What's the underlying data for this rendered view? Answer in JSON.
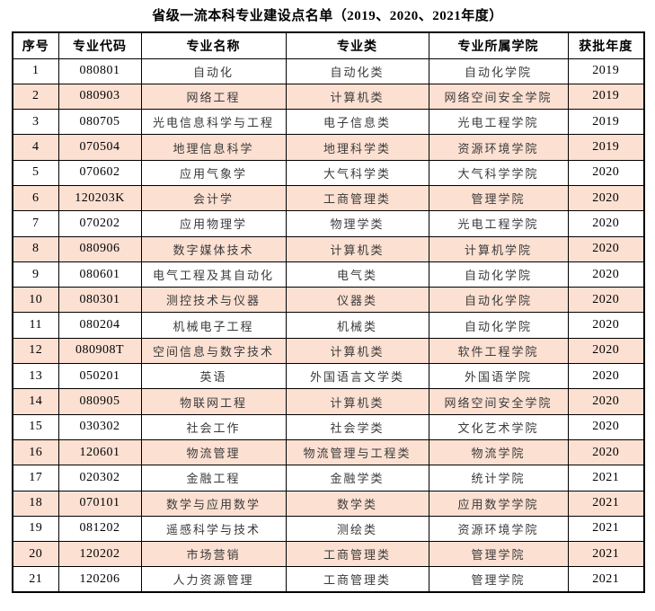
{
  "title": "省级一流本科专业建设点名单（2019、2020、2021年度）",
  "table": {
    "headers": [
      "序号",
      "专业代码",
      "专业名称",
      "专业类",
      "专业所属学院",
      "获批年度"
    ],
    "rows": [
      [
        "1",
        "080801",
        "自动化",
        "自动化类",
        "自动化学院",
        "2019"
      ],
      [
        "2",
        "080903",
        "网络工程",
        "计算机类",
        "网络空间安全学院",
        "2019"
      ],
      [
        "3",
        "080705",
        "光电信息科学与工程",
        "电子信息类",
        "光电工程学院",
        "2019"
      ],
      [
        "4",
        "070504",
        "地理信息科学",
        "地理科学类",
        "资源环境学院",
        "2019"
      ],
      [
        "5",
        "070602",
        "应用气象学",
        "大气科学类",
        "大气科学学院",
        "2020"
      ],
      [
        "6",
        "120203K",
        "会计学",
        "工商管理类",
        "管理学院",
        "2020"
      ],
      [
        "7",
        "070202",
        "应用物理学",
        "物理学类",
        "光电工程学院",
        "2020"
      ],
      [
        "8",
        "080906",
        "数字媒体技术",
        "计算机类",
        "计算机学院",
        "2020"
      ],
      [
        "9",
        "080601",
        "电气工程及其自动化",
        "电气类",
        "自动化学院",
        "2020"
      ],
      [
        "10",
        "080301",
        "测控技术与仪器",
        "仪器类",
        "自动化学院",
        "2020"
      ],
      [
        "11",
        "080204",
        "机械电子工程",
        "机械类",
        "自动化学院",
        "2020"
      ],
      [
        "12",
        "080908T",
        "空间信息与数字技术",
        "计算机类",
        "软件工程学院",
        "2020"
      ],
      [
        "13",
        "050201",
        "英语",
        "外国语言文学类",
        "外国语学院",
        "2020"
      ],
      [
        "14",
        "080905",
        "物联网工程",
        "计算机类",
        "网络空间安全学院",
        "2020"
      ],
      [
        "15",
        "030302",
        "社会工作",
        "社会学类",
        "文化艺术学院",
        "2020"
      ],
      [
        "16",
        "120601",
        "物流管理",
        "物流管理与工程类",
        "物流学院",
        "2020"
      ],
      [
        "17",
        "020302",
        "金融工程",
        "金融学类",
        "统计学院",
        "2021"
      ],
      [
        "18",
        "070101",
        "数学与应用数学",
        "数学类",
        "应用数学学院",
        "2021"
      ],
      [
        "19",
        "081202",
        "遥感科学与技术",
        "测绘类",
        "资源环境学院",
        "2021"
      ],
      [
        "20",
        "120202",
        "市场营销",
        "工商管理类",
        "管理学院",
        "2021"
      ],
      [
        "21",
        "120206",
        "人力资源管理",
        "工商管理类",
        "管理学院",
        "2021"
      ]
    ]
  },
  "colors": {
    "highlight_row": "#fce0d2",
    "border": "#000000",
    "text": "#000000",
    "body_text": "#3a3a3a",
    "background": "#ffffff"
  }
}
